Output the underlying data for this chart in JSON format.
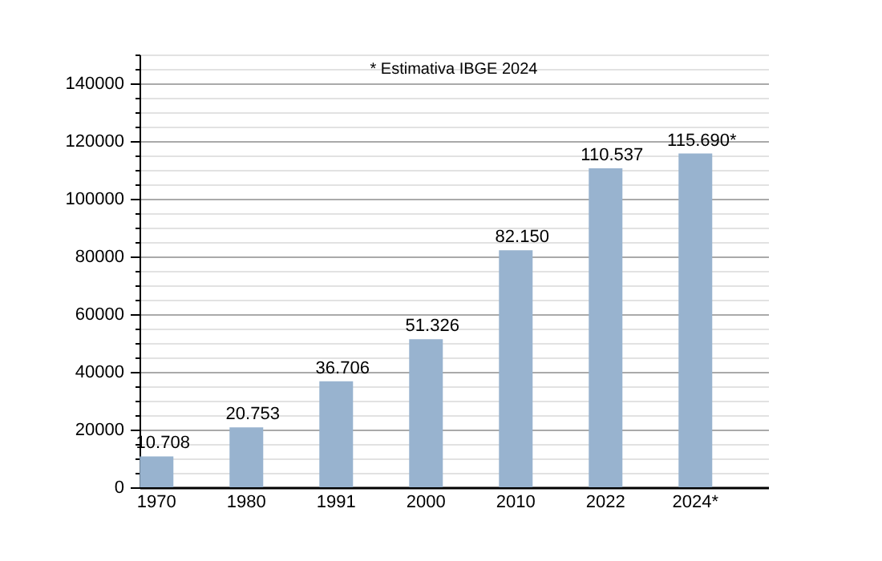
{
  "chart_data": {
    "type": "bar",
    "categories": [
      "1970",
      "1980",
      "1991",
      "2000",
      "2010",
      "2022",
      "2024*"
    ],
    "values": [
      10708,
      20753,
      36706,
      51326,
      82150,
      110537,
      115690
    ],
    "value_labels": [
      "10.708",
      "20.753",
      "36.706",
      "51.326",
      "82.150",
      "110.537",
      "115.690*"
    ],
    "color": "#98b3cf",
    "ylim": [
      0,
      150000
    ],
    "yticks": [
      0,
      {
        "value": 5000,
        "label": null
      },
      {
        "value": 10000,
        "label": null
      },
      {
        "value": 15000,
        "label": null
      },
      20000,
      {
        "value": 25000,
        "label": null
      },
      {
        "value": 30000,
        "label": null
      },
      {
        "value": 35000,
        "label": null
      },
      40000,
      {
        "value": 45000,
        "label": null
      },
      {
        "value": 50000,
        "label": null
      },
      {
        "value": 55000,
        "label": null
      },
      60000,
      {
        "value": 65000,
        "label": null
      },
      {
        "value": 70000,
        "label": null
      },
      {
        "value": 75000,
        "label": null
      },
      80000,
      {
        "value": 85000,
        "label": null
      },
      {
        "value": 90000,
        "label": null
      },
      {
        "value": 95000,
        "label": null
      },
      100000,
      {
        "value": 105000,
        "label": null
      },
      {
        "value": 110000,
        "label": null
      },
      {
        "value": 115000,
        "label": null
      },
      120000,
      {
        "value": 125000,
        "label": null
      },
      {
        "value": 130000,
        "label": null
      },
      {
        "value": 135000,
        "label": null
      },
      140000,
      {
        "value": 145000,
        "label": null
      },
      {
        "value": 150000,
        "label": null
      }
    ],
    "grid": "y",
    "annotations": [
      "* Estimativa IBGE 2024"
    ]
  }
}
